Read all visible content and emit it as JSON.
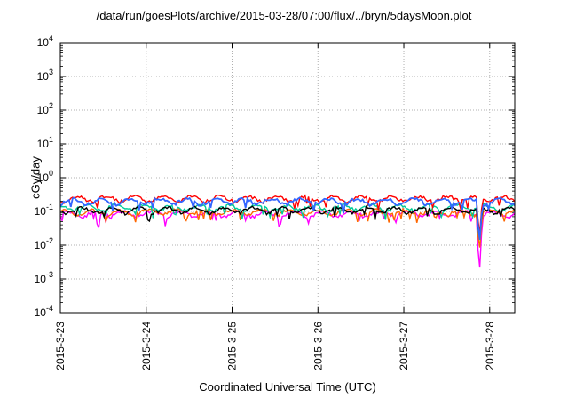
{
  "chart_data": {
    "type": "line",
    "title": "/data/run/goesPlots/archive/2015-03-28/07:00/flux/../bryn/5daysMoon.plot",
    "xlabel": "Coordinated Universal Time (UTC)",
    "ylabel": "cGy/day",
    "y_scale": "log",
    "ylim": [
      0.0001,
      10000
    ],
    "y_ticks": [
      {
        "value": 0.0001,
        "base": "10",
        "exp": "-4"
      },
      {
        "value": 0.001,
        "base": "10",
        "exp": "-3"
      },
      {
        "value": 0.01,
        "base": "10",
        "exp": "-2"
      },
      {
        "value": 0.1,
        "base": "10",
        "exp": "-1"
      },
      {
        "value": 1,
        "base": "10",
        "exp": "0"
      },
      {
        "value": 10,
        "base": "10",
        "exp": "1"
      },
      {
        "value": 100,
        "base": "10",
        "exp": "2"
      },
      {
        "value": 1000,
        "base": "10",
        "exp": "3"
      },
      {
        "value": 10000,
        "base": "10",
        "exp": "4"
      }
    ],
    "xlim": [
      "2015-03-23",
      "2015-03-28 07:00"
    ],
    "x_ticks": [
      "2015-3-23",
      "2015-3-24",
      "2015-3-25",
      "2015-3-26",
      "2015-3-27",
      "2015-3-28"
    ],
    "grid": true,
    "legend": "none",
    "series": [
      {
        "color": "#ff00ff",
        "baseline": 0.085,
        "dips": [
          {
            "day": 4.88,
            "value": 0.0013
          },
          {
            "day": 0.44,
            "value": 0.025
          }
        ]
      },
      {
        "color": "#ff6600",
        "baseline": 0.095,
        "dips": [
          {
            "day": 4.88,
            "value": 0.006
          }
        ]
      },
      {
        "color": "#00cc99",
        "baseline": 0.13,
        "dips": [
          {
            "day": 4.88,
            "value": 0.01
          }
        ]
      },
      {
        "color": "#000000",
        "baseline": 0.11,
        "dips": [
          {
            "day": 4.88,
            "value": 0.012
          }
        ]
      },
      {
        "color": "#ff0000",
        "baseline": 0.24,
        "dips": [
          {
            "day": 4.88,
            "value": 0.015
          }
        ]
      },
      {
        "color": "#3366ff",
        "baseline": 0.2,
        "dips": [
          {
            "day": 4.88,
            "value": 0.01
          }
        ]
      }
    ]
  }
}
